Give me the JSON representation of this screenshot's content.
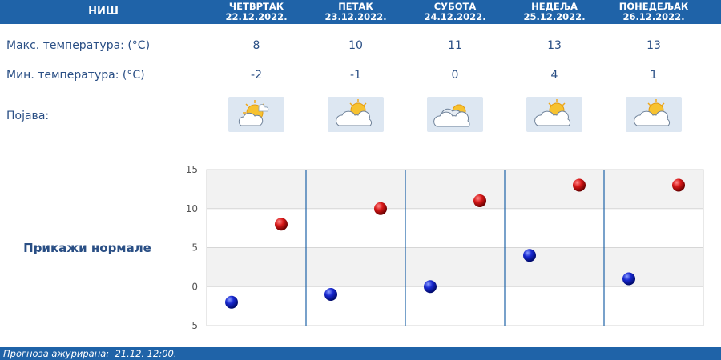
{
  "header": {
    "city": "НИШ",
    "days": [
      {
        "name": "ЧЕТВРТАК",
        "date": "22.12.2022."
      },
      {
        "name": "ПЕТАК",
        "date": "23.12.2022."
      },
      {
        "name": "СУБОТА",
        "date": "24.12.2022."
      },
      {
        "name": "НЕДЕЉА",
        "date": "25.12.2022."
      },
      {
        "name": "ПОНЕДЕЉАК",
        "date": "26.12.2022."
      }
    ]
  },
  "rows": {
    "max_label": "Макс. температура: (°C)",
    "min_label": "Мин. температура: (°C)",
    "weather_label": "Појава:",
    "max_values": [
      "8",
      "10",
      "11",
      "13",
      "13"
    ],
    "min_values": [
      "-2",
      "-1",
      "0",
      "4",
      "1"
    ],
    "weather_icons": [
      "sun-cloud-icon",
      "partly-cloudy-icon",
      "cloudy-sun-icon",
      "partly-cloudy-icon",
      "partly-cloudy-icon"
    ]
  },
  "normals_link": "Прикажи нормале",
  "chart_data": {
    "type": "scatter",
    "title": "",
    "xlabel": "",
    "ylabel": "",
    "ylim": [
      -5,
      15
    ],
    "yticks": [
      15,
      10,
      5,
      0,
      -5
    ],
    "categories": [
      "22.12.2022.",
      "23.12.2022.",
      "24.12.2022.",
      "25.12.2022.",
      "26.12.2022."
    ],
    "series": [
      {
        "name": "",
        "color": "#1020c0",
        "values": [
          -2,
          -1,
          0,
          4,
          1
        ]
      },
      {
        "name": "",
        "color": "#c01010",
        "values": [
          8,
          10,
          11,
          13,
          13
        ]
      }
    ],
    "grid": true
  },
  "footer": {
    "label": "Прогноза ажурирана:",
    "value": "21.12. 12:00."
  },
  "colors": {
    "header_bg": "#1f63a8",
    "text": "#2a4f85",
    "max_dot": "#c01010",
    "min_dot": "#1020c0"
  }
}
